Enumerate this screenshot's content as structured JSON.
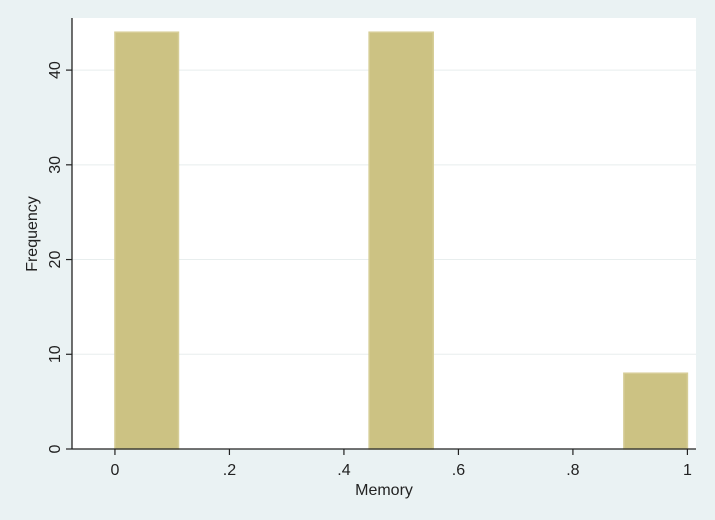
{
  "chart_data": {
    "type": "bar",
    "title": "",
    "xlabel": "Memory",
    "ylabel": "Frequency",
    "bins": [
      {
        "x_start": 0.0,
        "x_end": 0.111,
        "value": 44
      },
      {
        "x_start": 0.444,
        "x_end": 0.556,
        "value": 44
      },
      {
        "x_start": 0.889,
        "x_end": 1.0,
        "value": 8
      }
    ],
    "xlim": [
      -0.075,
      1.015
    ],
    "ylim": [
      0,
      45.5
    ],
    "x_ticks": [
      0,
      0.2,
      0.4,
      0.6,
      0.8,
      1
    ],
    "x_tick_labels": [
      "0",
      ".2",
      ".4",
      ".6",
      ".8",
      "1"
    ],
    "y_ticks": [
      0,
      10,
      20,
      30,
      40
    ],
    "y_tick_labels": [
      "0",
      "10",
      "20",
      "30",
      "40"
    ],
    "grid": true,
    "legend": "none",
    "colors": {
      "bar_fill": "#ccc283",
      "bar_edge": "#d6cd97",
      "plot_background": "#ffffff",
      "outer_background": "#eaf2f3",
      "gridline": "#e8eeee",
      "axis": "#222222"
    }
  }
}
